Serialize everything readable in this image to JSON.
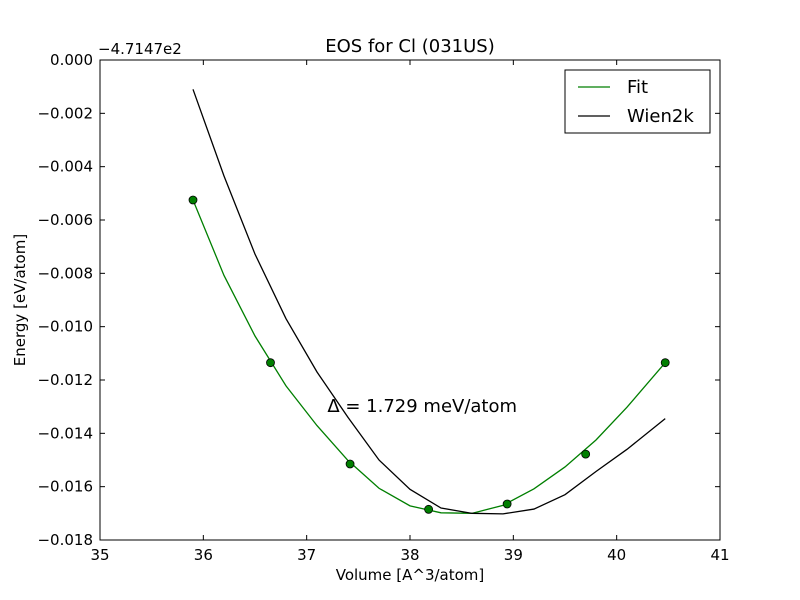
{
  "chart_data": {
    "type": "line",
    "title": "EOS for Cl (031US)",
    "xlabel": "Volume [A^3/atom]",
    "ylabel": "Energy [eV/atom]",
    "y_offset_label": "−4.7147e2",
    "xlim": [
      35,
      41
    ],
    "ylim": [
      -0.018,
      0.0
    ],
    "x_ticks": [
      35,
      36,
      37,
      38,
      39,
      40,
      41
    ],
    "x_tick_labels": [
      "35",
      "36",
      "37",
      "38",
      "39",
      "40",
      "41"
    ],
    "y_ticks": [
      0.0,
      -0.002,
      -0.004,
      -0.006,
      -0.008,
      -0.01,
      -0.012,
      -0.014,
      -0.016,
      -0.018
    ],
    "y_tick_labels": [
      "0.000",
      "−0.002",
      "−0.004",
      "−0.006",
      "−0.008",
      "−0.010",
      "−0.012",
      "−0.014",
      "−0.016",
      "−0.018"
    ],
    "grid": false,
    "legend_position": "top-right",
    "annotation": "Δ = 1.729 meV/atom",
    "annotation_at": [
      37.2,
      -0.0132
    ],
    "points": {
      "x": [
        35.9,
        36.65,
        37.42,
        38.18,
        38.94,
        39.7,
        40.47
      ],
      "y": [
        -0.00525,
        -0.01135,
        -0.01515,
        -0.01685,
        -0.01665,
        -0.01478,
        -0.01135
      ],
      "color": "#007f00"
    },
    "series": [
      {
        "name": "Fit",
        "color": "#007f00",
        "x": [
          35.9,
          36.2,
          36.5,
          36.8,
          37.1,
          37.4,
          37.7,
          38.0,
          38.3,
          38.6,
          38.9,
          39.2,
          39.5,
          39.8,
          40.1,
          40.47
        ],
        "y": [
          -0.00525,
          -0.00808,
          -0.01035,
          -0.01222,
          -0.01371,
          -0.01502,
          -0.01606,
          -0.01672,
          -0.01698,
          -0.017,
          -0.0167,
          -0.01608,
          -0.01526,
          -0.01425,
          -0.01302,
          -0.01135
        ]
      },
      {
        "name": "Wien2k",
        "color": "#000000",
        "x": [
          35.9,
          36.2,
          36.5,
          36.8,
          37.1,
          37.4,
          37.7,
          38.0,
          38.3,
          38.6,
          38.9,
          39.2,
          39.5,
          39.8,
          40.1,
          40.47
        ],
        "y": [
          -0.0011,
          -0.00435,
          -0.00728,
          -0.0097,
          -0.0117,
          -0.0134,
          -0.015,
          -0.0161,
          -0.0168,
          -0.017,
          -0.01702,
          -0.01684,
          -0.0163,
          -0.01543,
          -0.0146,
          -0.01345
        ]
      }
    ]
  }
}
